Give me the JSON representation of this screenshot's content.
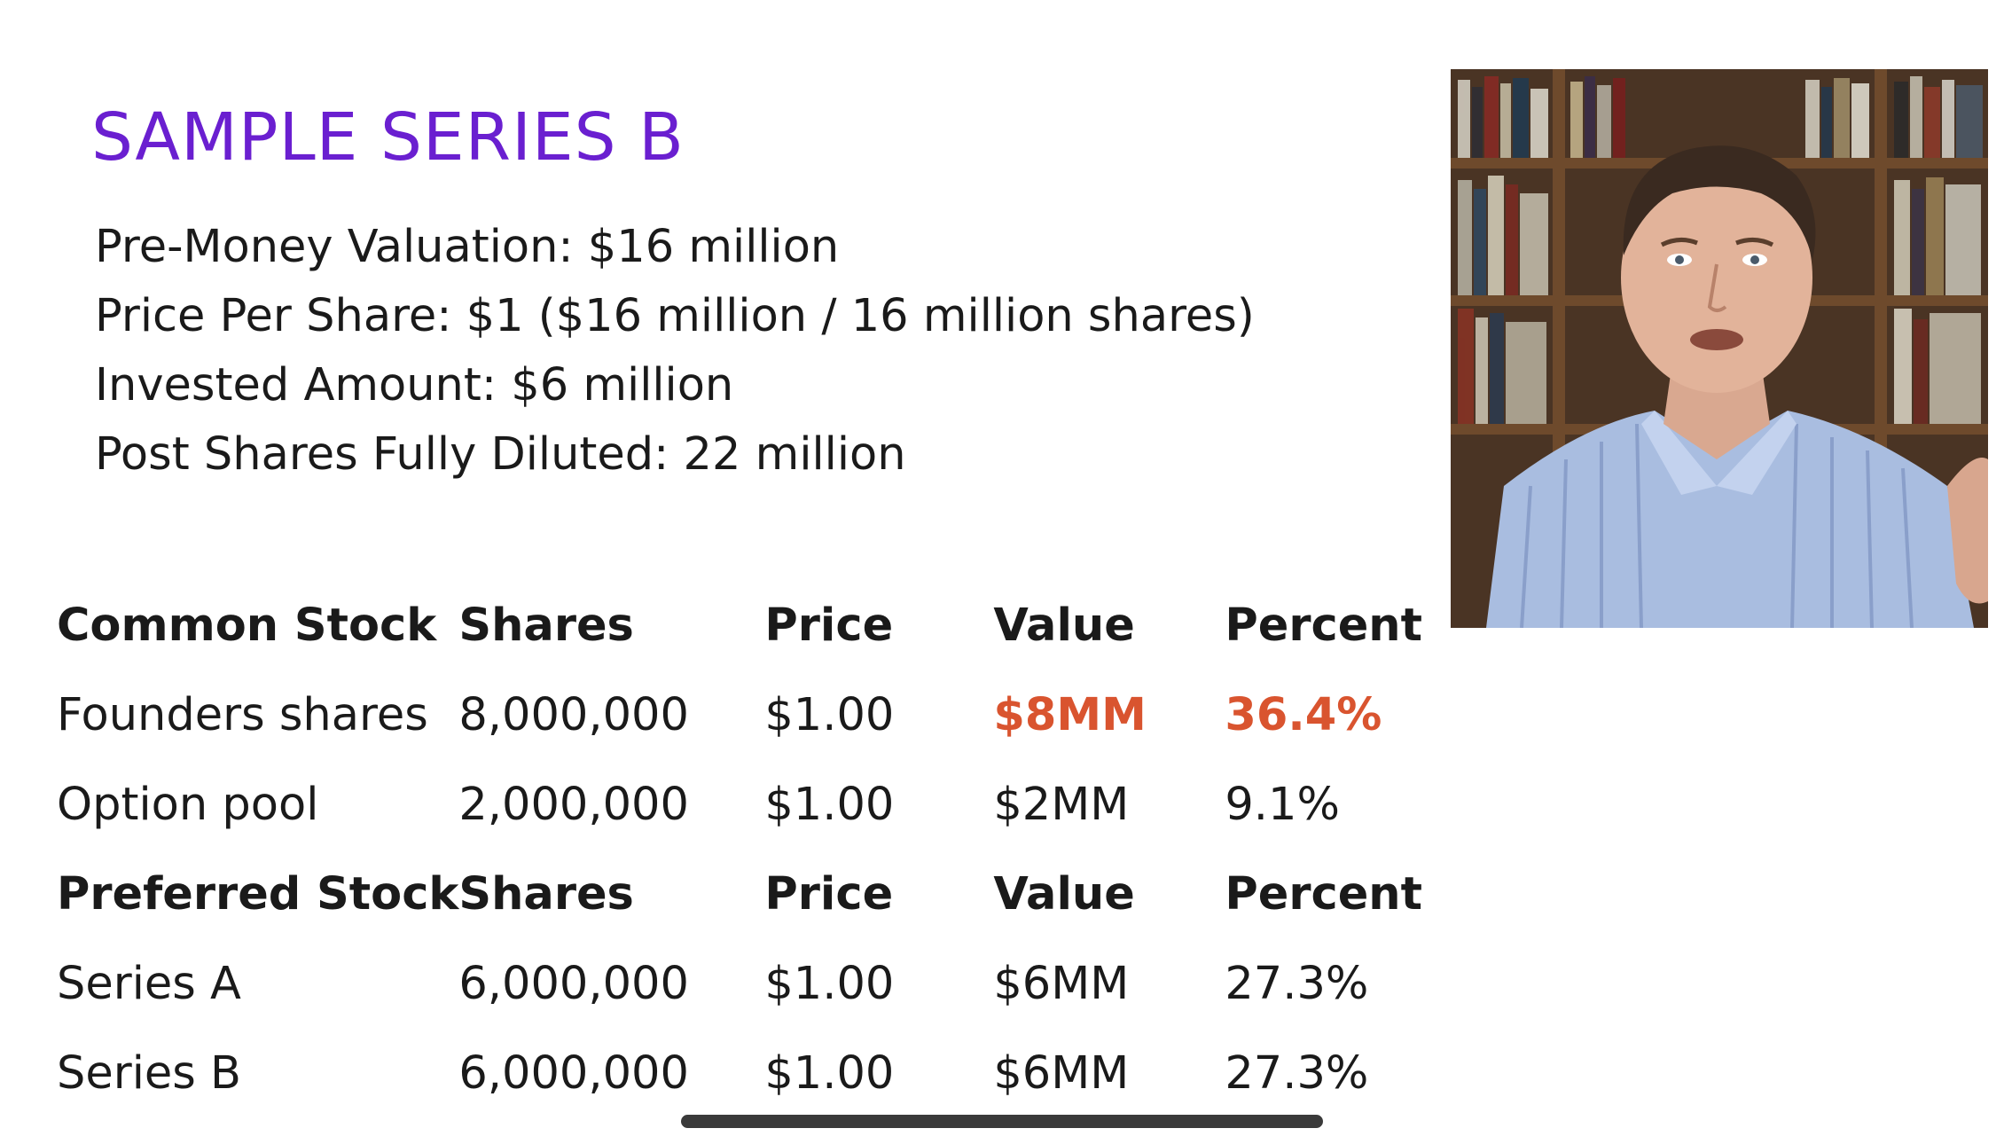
{
  "slide": {
    "title": "SAMPLE SERIES B",
    "facts": [
      "Pre-Money Valuation: $16 million",
      "Price Per Share: $1 ($16 million / 16 million shares)",
      "Invested Amount: $6 million",
      "Post Shares Fully Diluted: 22 million"
    ],
    "table": {
      "common_header": [
        "Common Stock",
        "Shares",
        "Price",
        "Value",
        "Percent"
      ],
      "common_rows": [
        [
          "Founders shares",
          "8,000,000",
          "$1.00",
          "$8MM",
          "36.4%"
        ],
        [
          "Option pool",
          "2,000,000",
          "$1.00",
          "$2MM",
          "9.1%"
        ]
      ],
      "preferred_header": [
        "Preferred Stock",
        "Shares",
        "Price",
        "Value",
        "Percent"
      ],
      "preferred_rows": [
        [
          "Series A",
          "6,000,000",
          "$1.00",
          "$6MM",
          "27.3%"
        ],
        [
          "Series B",
          "6,000,000",
          "$1.00",
          "$6MM",
          "27.3%"
        ]
      ]
    },
    "highlight_color": "#d9542f",
    "title_color": "#6a1fd0"
  },
  "video": {
    "content": "presenter-webcam"
  }
}
